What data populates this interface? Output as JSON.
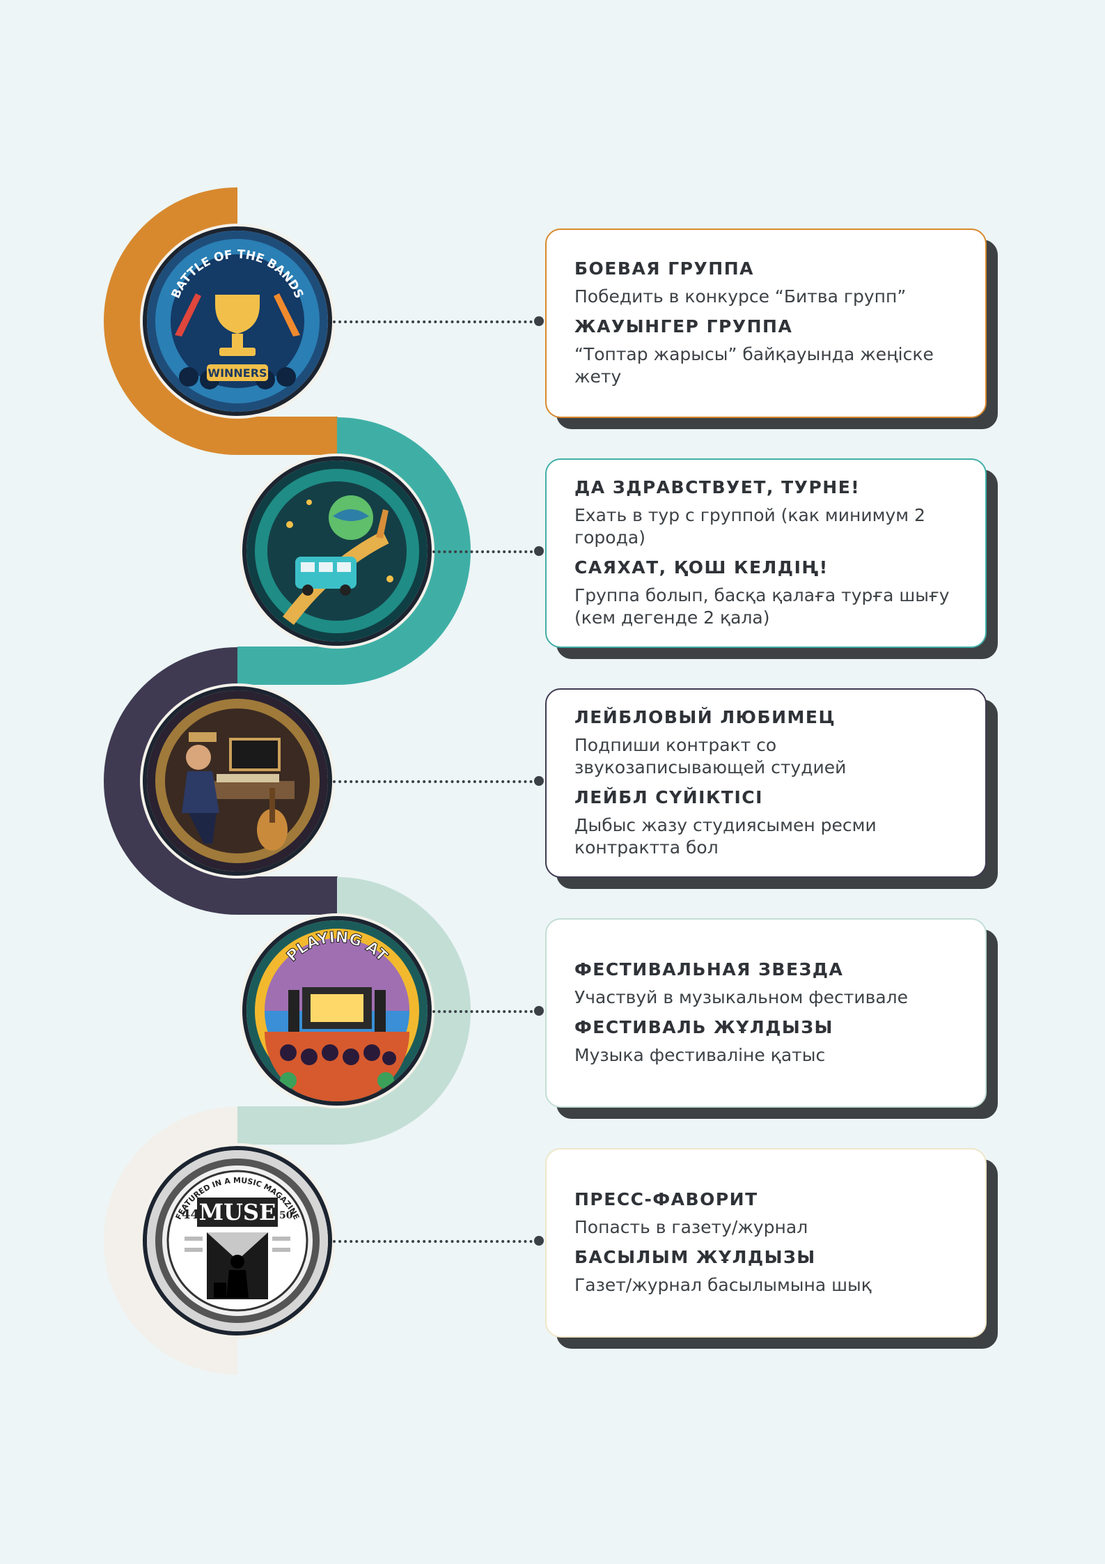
{
  "accent_colors": [
    "#d8892e",
    "#3fafa6",
    "#3f3a52",
    "#c3ded5",
    "#f3efea"
  ],
  "steps": [
    {
      "icon": "battle-of-the-bands-badge-icon",
      "badge_lines": [
        "BATTLE OF THE BANDS",
        "WINNERS"
      ],
      "title_ru": "БОЕВАЯ ГРУППА",
      "text_ru": "Победить в конкурсе “Битва групп”",
      "title_kk": "ЖАУЫНГЕР ГРУППА",
      "text_kk": "“Топтар жарысы” байқауында жеңіске жету"
    },
    {
      "icon": "tour-bus-badge-icon",
      "badge_lines": [],
      "title_ru": "ДА ЗДРАВСТВУЕТ, ТУРНЕ!",
      "text_ru": "Ехать в тур с группой (как минимум 2 города)",
      "title_kk": "САЯХАТ, ҚОШ КЕЛДІҢ!",
      "text_kk": "Группа болып, басқа қалаға турға шығу (кем дегенде 2 қала)"
    },
    {
      "icon": "recording-studio-badge-icon",
      "badge_lines": [],
      "title_ru": "ЛЕЙБЛОВЫЙ ЛЮБИМЕЦ",
      "text_ru": "Подпиши контракт со звукозаписывающей студией",
      "title_kk": "ЛЕЙБЛ СҮЙІКТІСІ",
      "text_kk": "Дыбыс жазу студиясымен ресми контрактта бол"
    },
    {
      "icon": "music-festival-badge-icon",
      "badge_lines": [
        "PLAYING AT"
      ],
      "title_ru": "ФЕСТИВАЛЬНАЯ ЗВЕЗДА",
      "text_ru": "Участвуй в музыкальном фестивале",
      "title_kk": "ФЕСТИВАЛЬ ЖҰЛДЫЗЫ",
      "text_kk": "Музыка фестиваліне қатыс"
    },
    {
      "icon": "music-magazine-badge-icon",
      "badge_lines": [
        "FEATURED IN A MUSIC MAGAZINE",
        "MUSE",
        "44",
        "50"
      ],
      "title_ru": "ПРЕСС-ФАВОРИТ",
      "text_ru": "Попасть в газету/журнал",
      "title_kk": "БАСЫЛЫМ ЖҰЛДЫЗЫ",
      "text_kk": "Газет/журнал басылымына шық"
    }
  ]
}
